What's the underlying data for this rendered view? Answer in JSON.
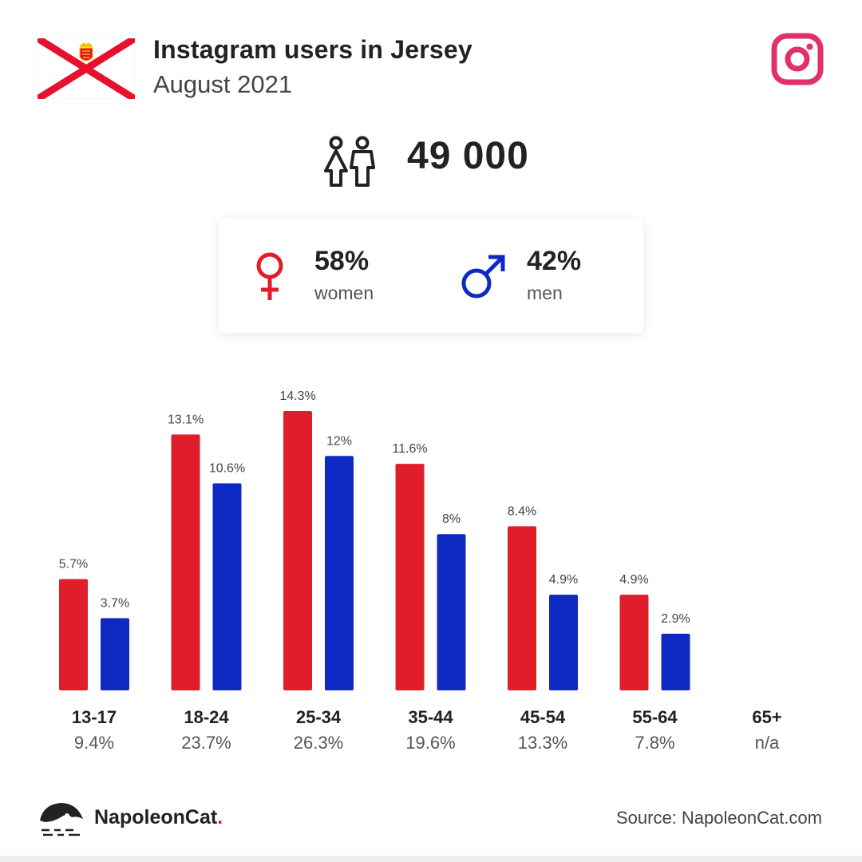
{
  "header": {
    "title": "Instagram users in Jersey",
    "subtitle": "August 2021"
  },
  "icons": {
    "flag": "jersey-flag-icon",
    "platform": "instagram-icon",
    "users": "people-icon",
    "female": "female-symbol-icon",
    "male": "male-symbol-icon",
    "brand": "napoleoncat-logo-icon"
  },
  "summary": {
    "total_users": "49 000",
    "women_pct": "58%",
    "women_label": "women",
    "men_pct": "42%",
    "men_label": "men"
  },
  "colors": {
    "women": "#e01e2a",
    "men": "#0f2ac3",
    "instagram": "#e1306c",
    "flag_red": "#e8112d"
  },
  "chart_data": {
    "type": "bar",
    "categories": [
      "13-17",
      "18-24",
      "25-34",
      "35-44",
      "45-54",
      "55-64",
      "65+"
    ],
    "category_totals": [
      "9.4%",
      "23.7%",
      "26.3%",
      "19.6%",
      "13.3%",
      "7.8%",
      "n/a"
    ],
    "series": [
      {
        "name": "women",
        "color": "#e01e2a",
        "values": [
          5.7,
          13.1,
          14.3,
          11.6,
          8.4,
          4.9,
          null
        ],
        "labels": [
          "5.7%",
          "13.1%",
          "14.3%",
          "11.6%",
          "8.4%",
          "4.9%",
          ""
        ]
      },
      {
        "name": "men",
        "color": "#0f2ac3",
        "values": [
          3.7,
          10.6,
          12,
          8,
          4.9,
          2.9,
          null
        ],
        "labels": [
          "3.7%",
          "10.6%",
          "12%",
          "8%",
          "4.9%",
          "2.9%",
          ""
        ]
      }
    ],
    "ylim": [
      0,
      14.3
    ],
    "grid": false,
    "legend": "none"
  },
  "footer": {
    "brand_name": "NapoleonCat",
    "brand_dot": ".",
    "source": "Source: NapoleonCat.com"
  }
}
